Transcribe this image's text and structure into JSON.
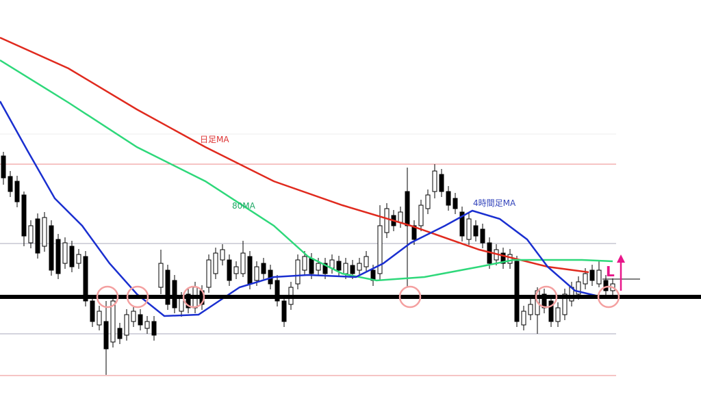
{
  "annotations": {
    "daily_ma": "日足MA",
    "ma80": "80MA",
    "h4_ma": "4時間足MA",
    "entry": "L"
  }
}
